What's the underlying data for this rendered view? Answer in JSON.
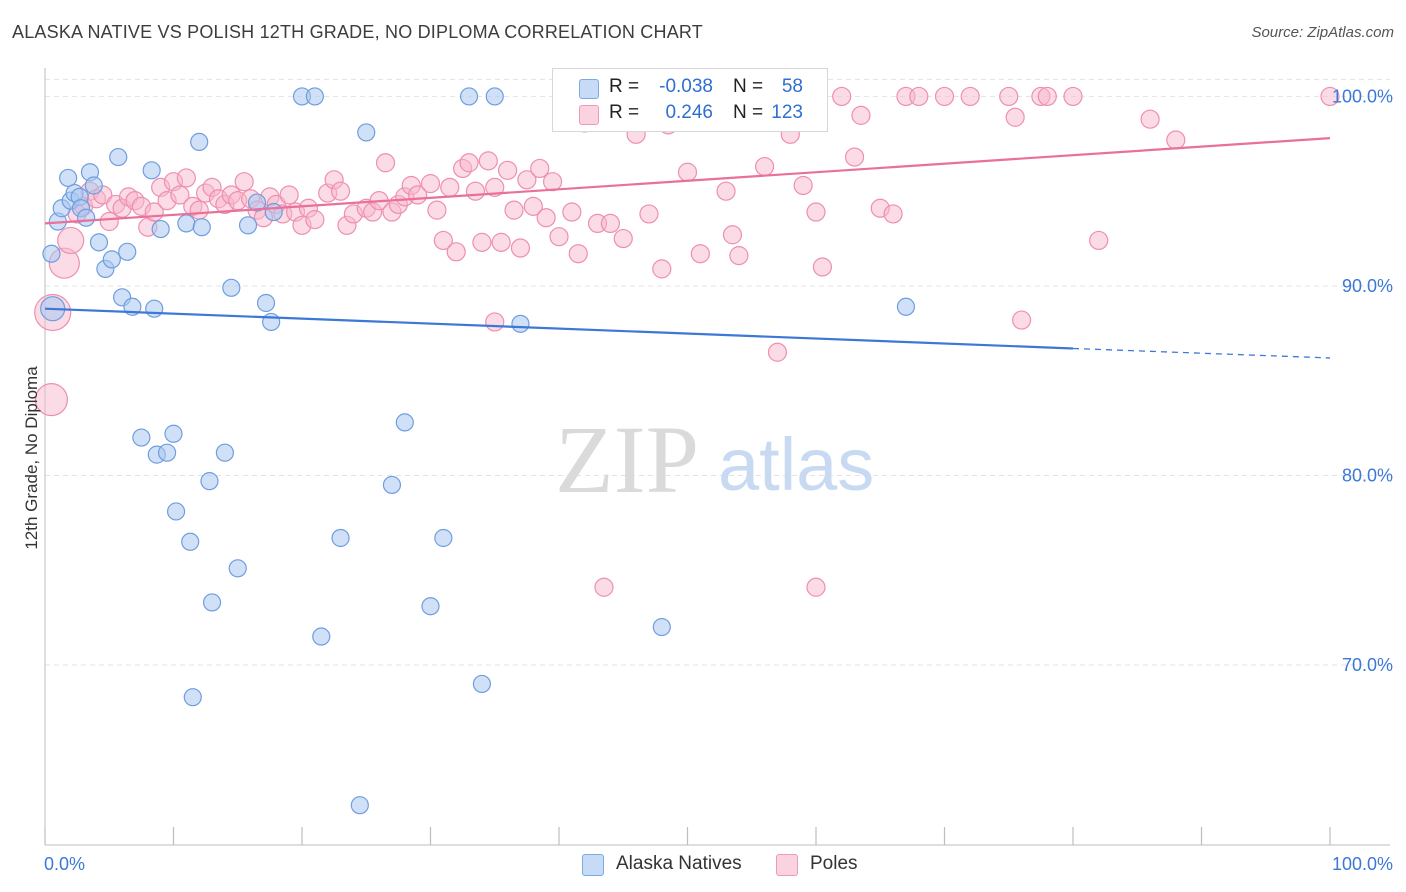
{
  "header": {
    "title": "ALASKA NATIVE VS POLISH 12TH GRADE, NO DIPLOMA CORRELATION CHART",
    "source": "Source: ZipAtlas.com"
  },
  "watermark": {
    "zip": "ZIP",
    "atlas": "atlas"
  },
  "legend": {
    "rows": [
      {
        "r_label": "R =",
        "r_value": "-0.038",
        "n_label": "N =",
        "n_value": "58",
        "color": "#aac8f0"
      },
      {
        "r_label": "R =",
        "r_value": "0.246",
        "n_label": "N =",
        "n_value": "123",
        "color": "#f7b8cc"
      }
    ]
  },
  "bottom_legend": {
    "items": [
      {
        "label": "Alaska Natives",
        "color": "#aac8f0"
      },
      {
        "label": "Poles",
        "color": "#f7b8cc"
      }
    ]
  },
  "colors": {
    "blue": "#3b78d8",
    "blue_fill": "#aac8f0",
    "pink": "#e8709a",
    "pink_fill": "#f7b8cc",
    "axis_text": "#3b78d8",
    "grid": "#e3e3e3"
  },
  "chart_data": {
    "type": "scatter",
    "title": "ALASKA NATIVE VS POLISH 12TH GRADE, NO DIPLOMA CORRELATION CHART",
    "xlabel": "",
    "ylabel": "12th Grade, No Diploma",
    "xlim": [
      0,
      100
    ],
    "ylim": [
      60.5,
      101.5
    ],
    "x_tick_labels": [
      "0.0%",
      "100.0%"
    ],
    "y_ticks": [
      70,
      80,
      90,
      100
    ],
    "y_tick_labels": [
      "70.0%",
      "80.0%",
      "90.0%",
      "100.0%"
    ],
    "grid": true,
    "legend_position": "top-center",
    "series": [
      {
        "name": "Alaska Natives",
        "color": "#3b78d8",
        "fill": "#aac8f0",
        "trend": {
          "x0": 0,
          "y0": 88.8,
          "x1": 80,
          "y1": 86.7,
          "dash_to_x": 100,
          "dash_to_y": 86.2
        },
        "points": [
          [
            0.5,
            91.7
          ],
          [
            0.6,
            88.8
          ],
          [
            1.0,
            93.4
          ],
          [
            1.3,
            94.1
          ],
          [
            1.8,
            95.7
          ],
          [
            2.0,
            94.5
          ],
          [
            2.3,
            94.9
          ],
          [
            2.7,
            94.7
          ],
          [
            2.8,
            94.1
          ],
          [
            3.2,
            93.6
          ],
          [
            3.5,
            96.0
          ],
          [
            3.8,
            95.3
          ],
          [
            4.2,
            92.3
          ],
          [
            4.7,
            90.9
          ],
          [
            5.2,
            91.4
          ],
          [
            5.7,
            96.8
          ],
          [
            6.0,
            89.4
          ],
          [
            6.4,
            91.8
          ],
          [
            6.8,
            88.9
          ],
          [
            7.5,
            82.0
          ],
          [
            8.3,
            96.1
          ],
          [
            8.5,
            88.8
          ],
          [
            8.7,
            81.1
          ],
          [
            9.0,
            93.0
          ],
          [
            9.5,
            81.2
          ],
          [
            10.0,
            82.2
          ],
          [
            10.2,
            78.1
          ],
          [
            11.0,
            93.3
          ],
          [
            11.3,
            76.5
          ],
          [
            11.5,
            68.3
          ],
          [
            12.0,
            97.6
          ],
          [
            12.2,
            93.1
          ],
          [
            12.8,
            79.7
          ],
          [
            13.0,
            73.3
          ],
          [
            14.0,
            81.2
          ],
          [
            14.5,
            89.9
          ],
          [
            15.0,
            75.1
          ],
          [
            15.8,
            93.2
          ],
          [
            16.5,
            94.4
          ],
          [
            17.2,
            89.1
          ],
          [
            17.6,
            88.1
          ],
          [
            17.8,
            93.9
          ],
          [
            20.0,
            100.0
          ],
          [
            21.0,
            100.0
          ],
          [
            21.5,
            71.5
          ],
          [
            23.0,
            76.7
          ],
          [
            24.5,
            62.6
          ],
          [
            25.0,
            98.1
          ],
          [
            27.0,
            79.5
          ],
          [
            28.0,
            82.8
          ],
          [
            30.0,
            73.1
          ],
          [
            31.0,
            76.7
          ],
          [
            33.0,
            100.0
          ],
          [
            34.0,
            69.0
          ],
          [
            35.0,
            100.0
          ],
          [
            37.0,
            88.0
          ],
          [
            48.0,
            72.0
          ],
          [
            67.0,
            88.9
          ]
        ]
      },
      {
        "name": "Poles",
        "color": "#e8709a",
        "fill": "#f7b8cc",
        "trend": {
          "x0": 0,
          "y0": 93.3,
          "x1": 100,
          "y1": 97.8
        },
        "points": [
          [
            0.6,
            88.6
          ],
          [
            0.5,
            84.0
          ],
          [
            1.5,
            91.2
          ],
          [
            2.0,
            92.4
          ],
          [
            2.5,
            93.8
          ],
          [
            3.0,
            94.2
          ],
          [
            3.5,
            95.0
          ],
          [
            4.0,
            94.6
          ],
          [
            4.5,
            94.8
          ],
          [
            5.0,
            93.4
          ],
          [
            5.5,
            94.3
          ],
          [
            6.0,
            94.1
          ],
          [
            6.5,
            94.7
          ],
          [
            7.0,
            94.5
          ],
          [
            7.5,
            94.2
          ],
          [
            8.0,
            93.1
          ],
          [
            8.5,
            93.9
          ],
          [
            9.0,
            95.2
          ],
          [
            9.5,
            94.5
          ],
          [
            10.0,
            95.5
          ],
          [
            10.5,
            94.8
          ],
          [
            11.0,
            95.7
          ],
          [
            11.5,
            94.2
          ],
          [
            12.0,
            94.0
          ],
          [
            12.5,
            94.9
          ],
          [
            13.0,
            95.2
          ],
          [
            13.5,
            94.6
          ],
          [
            14.0,
            94.3
          ],
          [
            14.5,
            94.8
          ],
          [
            15.0,
            94.5
          ],
          [
            15.5,
            95.5
          ],
          [
            16.0,
            94.6
          ],
          [
            16.5,
            94.0
          ],
          [
            17.0,
            93.6
          ],
          [
            17.5,
            94.7
          ],
          [
            18.0,
            94.3
          ],
          [
            18.5,
            93.8
          ],
          [
            19.0,
            94.8
          ],
          [
            19.5,
            93.9
          ],
          [
            20.0,
            93.2
          ],
          [
            20.5,
            94.1
          ],
          [
            21.0,
            93.5
          ],
          [
            22.0,
            94.9
          ],
          [
            22.5,
            95.6
          ],
          [
            23.0,
            95.0
          ],
          [
            23.5,
            93.2
          ],
          [
            24.0,
            93.8
          ],
          [
            25.0,
            94.1
          ],
          [
            25.5,
            93.9
          ],
          [
            26.0,
            94.5
          ],
          [
            26.5,
            96.5
          ],
          [
            27.0,
            93.9
          ],
          [
            27.5,
            94.3
          ],
          [
            28.0,
            94.7
          ],
          [
            28.5,
            95.3
          ],
          [
            29.0,
            94.8
          ],
          [
            30.0,
            95.4
          ],
          [
            30.5,
            94.0
          ],
          [
            31.0,
            92.4
          ],
          [
            31.5,
            95.2
          ],
          [
            32.0,
            91.8
          ],
          [
            32.5,
            96.2
          ],
          [
            33.0,
            96.5
          ],
          [
            33.5,
            95.0
          ],
          [
            34.0,
            92.3
          ],
          [
            34.5,
            96.6
          ],
          [
            35.0,
            95.2
          ],
          [
            35.5,
            92.3
          ],
          [
            36.0,
            96.1
          ],
          [
            36.5,
            94.0
          ],
          [
            37.0,
            92.0
          ],
          [
            37.5,
            95.6
          ],
          [
            38.0,
            94.2
          ],
          [
            38.5,
            96.2
          ],
          [
            39.0,
            93.6
          ],
          [
            39.5,
            95.5
          ],
          [
            40.0,
            92.6
          ],
          [
            41.0,
            93.9
          ],
          [
            41.5,
            91.7
          ],
          [
            42.0,
            98.6
          ],
          [
            43.0,
            93.3
          ],
          [
            44.0,
            93.3
          ],
          [
            45.0,
            92.5
          ],
          [
            46.0,
            98.0
          ],
          [
            46.5,
            100.0
          ],
          [
            47.0,
            93.8
          ],
          [
            48.0,
            90.9
          ],
          [
            48.5,
            98.5
          ],
          [
            49.0,
            100.0
          ],
          [
            50.0,
            96.0
          ],
          [
            51.0,
            91.7
          ],
          [
            52.0,
            100.0
          ],
          [
            53.0,
            95.0
          ],
          [
            53.5,
            92.7
          ],
          [
            54.0,
            91.6
          ],
          [
            55.0,
            100.0
          ],
          [
            56.0,
            96.3
          ],
          [
            57.0,
            86.5
          ],
          [
            58.0,
            98.0
          ],
          [
            59.0,
            95.3
          ],
          [
            60.0,
            93.9
          ],
          [
            60.5,
            91.0
          ],
          [
            62.0,
            100.0
          ],
          [
            63.0,
            96.8
          ],
          [
            63.5,
            99.0
          ],
          [
            65.0,
            94.1
          ],
          [
            66.0,
            93.8
          ],
          [
            67.0,
            100.0
          ],
          [
            68.0,
            100.0
          ],
          [
            70.0,
            100.0
          ],
          [
            72.0,
            100.0
          ],
          [
            75.0,
            100.0
          ],
          [
            75.5,
            98.9
          ],
          [
            76.0,
            88.2
          ],
          [
            77.5,
            100.0
          ],
          [
            78.0,
            100.0
          ],
          [
            80.0,
            100.0
          ],
          [
            82.0,
            92.4
          ],
          [
            86.0,
            98.8
          ],
          [
            88.0,
            97.7
          ],
          [
            100.0,
            100.0
          ],
          [
            43.5,
            74.1
          ],
          [
            60.0,
            74.1
          ],
          [
            35.0,
            88.1
          ]
        ]
      }
    ]
  }
}
